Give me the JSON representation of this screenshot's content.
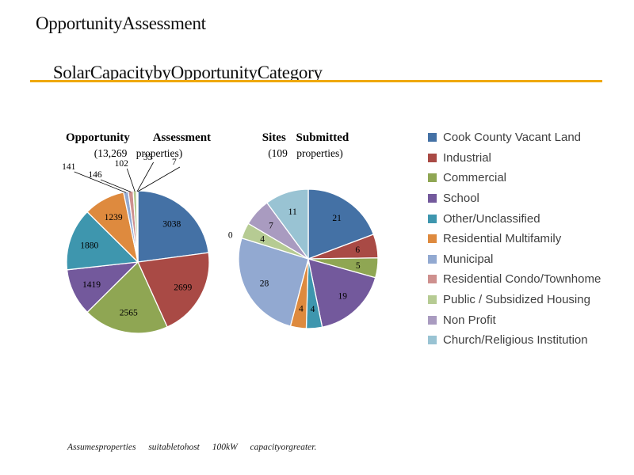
{
  "slide": {
    "title_line1": "OpportunityAssessment",
    "title_line2": "SolarCapacitybyOpportunityCategory",
    "rule_color": "#EFA800",
    "footnote": "Assumesproperties suitabletohost 100kW capacityorgreater."
  },
  "legend": {
    "position": "right",
    "items": [
      {
        "label": "Cook County Vacant Land",
        "color": "#4471A5"
      },
      {
        "label": "Industrial",
        "color": "#A94A45"
      },
      {
        "label": "Commercial",
        "color": "#8FA653"
      },
      {
        "label": "School",
        "color": "#73599C"
      },
      {
        "label": "Other/Unclassified",
        "color": "#3E96AE"
      },
      {
        "label": "Residential Multifamily",
        "color": "#DE8A3E"
      },
      {
        "label": "Municipal",
        "color": "#92A9D1"
      },
      {
        "label": "Residential Condo/Townhome",
        "color": "#CE908E"
      },
      {
        "label": "Public / Subsidized Housing",
        "color": "#B6CB93"
      },
      {
        "label": "Non Profit",
        "color": "#A99BC0"
      },
      {
        "label": "Church/Religious Institution",
        "color": "#99C3D3"
      }
    ]
  },
  "chart_data": [
    {
      "type": "pie",
      "title": "Opportunity Assessment",
      "subtitle": "(13,269 properties)",
      "total": 13269,
      "start_angle_deg": 0,
      "direction": "clockwise",
      "categories": [
        "Cook County Vacant Land",
        "Industrial",
        "Commercial",
        "School",
        "Other/Unclassified",
        "Residential Multifamily",
        "Municipal",
        "Residential Condo/Townhome",
        "Public / Subsidized Housing",
        "Non Profit",
        "Church/Religious Institution"
      ],
      "values": [
        3038,
        2699,
        2565,
        1419,
        1880,
        1239,
        141,
        146,
        102,
        33,
        7
      ],
      "colors": [
        "#4471A5",
        "#A94A45",
        "#8FA653",
        "#73599C",
        "#3E96AE",
        "#DE8A3E",
        "#92A9D1",
        "#CE908E",
        "#B6CB93",
        "#A99BC0",
        "#99C3D3"
      ],
      "data_labels": "values, small slices labeled outside with leader lines"
    },
    {
      "type": "pie",
      "title": "Sites Submitted",
      "subtitle": "(109 properties)",
      "total": 109,
      "start_angle_deg": 0,
      "direction": "clockwise",
      "categories": [
        "Cook County Vacant Land",
        "Industrial",
        "Commercial",
        "School",
        "Other/Unclassified",
        "Residential Multifamily",
        "Municipal",
        "Residential Condo/Townhome",
        "Public / Subsidized Housing",
        "Non Profit",
        "Church/Religious Institution"
      ],
      "values": [
        21,
        6,
        5,
        19,
        4,
        4,
        28,
        0,
        4,
        7,
        11
      ],
      "colors": [
        "#4471A5",
        "#A94A45",
        "#8FA653",
        "#73599C",
        "#3E96AE",
        "#DE8A3E",
        "#92A9D1",
        "#CE908E",
        "#B6CB93",
        "#A99BC0",
        "#99C3D3"
      ],
      "data_labels": "values, zero slice labeled outside"
    }
  ]
}
